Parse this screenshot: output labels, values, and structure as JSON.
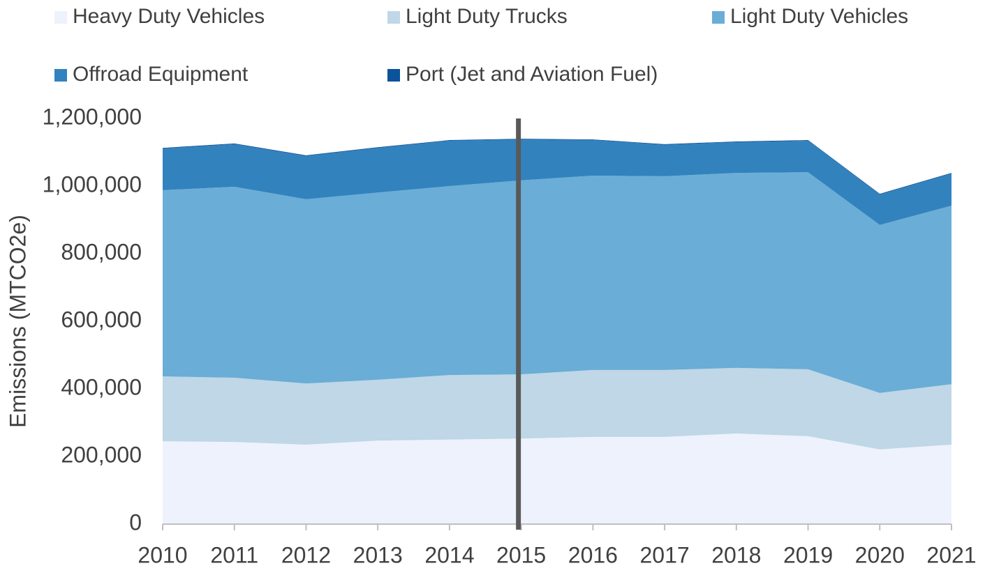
{
  "chart_data": {
    "type": "stacked_area",
    "y_label": "Emissions (MTCO2e)",
    "x": [
      2010,
      2011,
      2012,
      2013,
      2014,
      2015,
      2016,
      2017,
      2018,
      2019,
      2020,
      2021
    ],
    "xlim": [
      2010,
      2021
    ],
    "xticks": [
      2010,
      2011,
      2012,
      2013,
      2014,
      2015,
      2016,
      2017,
      2018,
      2019,
      2020,
      2021
    ],
    "ylim": [
      0,
      1200000
    ],
    "yticks": [
      0,
      {
        "value": 200000,
        "label": "200,000"
      },
      {
        "value": 400000,
        "label": "400,000"
      },
      {
        "value": 600000,
        "label": "600,000"
      },
      {
        "value": 800000,
        "label": "800,000"
      },
      {
        "value": 1000000,
        "label": "1,000,000"
      },
      {
        "value": 1200000,
        "label": "1,200,000"
      }
    ],
    "reference_line_x": 2015,
    "legend": "top",
    "series": [
      {
        "name": "Heavy Duty Vehicles",
        "color": "#eef2fc",
        "values": [
          245000,
          243000,
          235000,
          247000,
          250000,
          253000,
          258000,
          258000,
          268000,
          260000,
          221000,
          235000
        ]
      },
      {
        "name": "Light Duty Trucks",
        "color": "#bfd7e6",
        "values": [
          192000,
          190000,
          181000,
          180000,
          191000,
          190000,
          198000,
          198000,
          194000,
          198000,
          167000,
          179000
        ]
      },
      {
        "name": "Light Duty Vehicles",
        "color": "#6aadd6",
        "values": [
          551000,
          565000,
          545000,
          554000,
          559000,
          574000,
          575000,
          573000,
          577000,
          583000,
          497000,
          528000
        ]
      },
      {
        "name": "Offroad Equipment",
        "color": "#3282be",
        "values": [
          123000,
          126000,
          128000,
          132000,
          134000,
          121000,
          105000,
          93000,
          91000,
          93000,
          90000,
          95000
        ]
      },
      {
        "name": "Port (Jet and Aviation Fuel)",
        "color": "#0b539a",
        "values": [
          2000,
          2000,
          2000,
          2000,
          2000,
          2000,
          2000,
          2000,
          2000,
          2000,
          2000,
          2000
        ]
      }
    ]
  }
}
